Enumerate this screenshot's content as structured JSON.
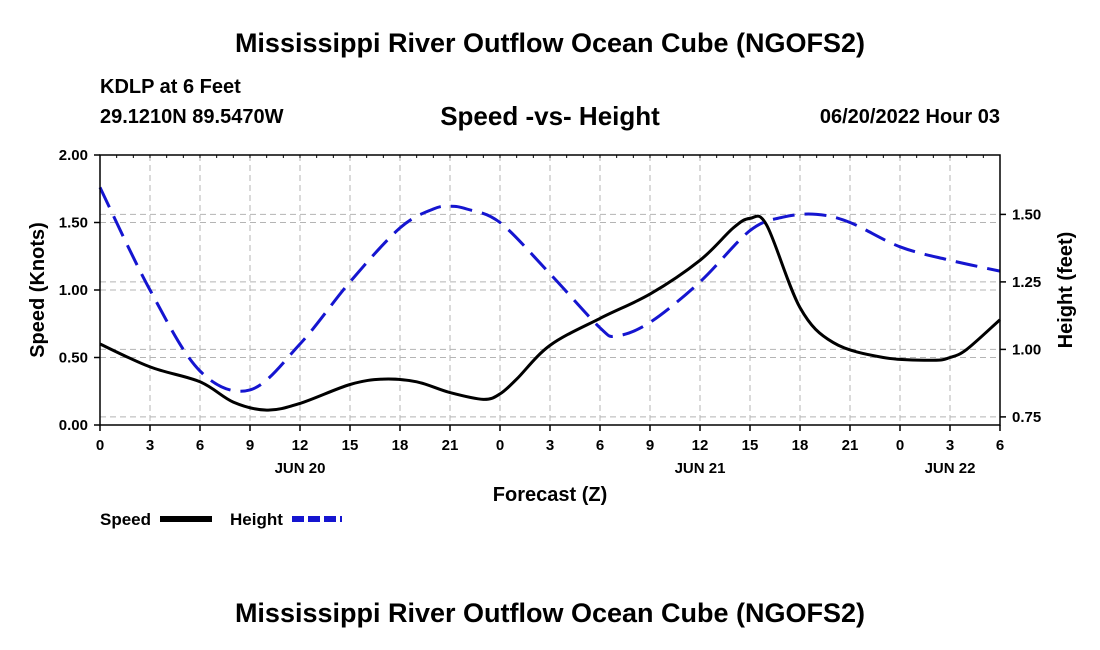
{
  "header": {
    "title": "Mississippi River Outflow Ocean Cube (NGOFS2)",
    "station": "KDLP at 6 Feet",
    "coords": "29.1210N  89.5470W",
    "subtitle": "Speed -vs- Height",
    "datetime": "06/20/2022 Hour 03",
    "footer_title": "Mississippi River Outflow Ocean Cube (NGOFS2)"
  },
  "colors": {
    "speed": "#000000",
    "height": "#1515d0",
    "grid": "#b4b4b4"
  },
  "chart_data": {
    "type": "line",
    "title": "Speed -vs- Height",
    "xlabel": "Forecast (Z)",
    "ylabel": "Speed (Knots)",
    "y2label": "Height (feet)",
    "xlim": [
      0,
      54
    ],
    "ylim": [
      0,
      2
    ],
    "y2lim": [
      0.72,
      1.72
    ],
    "grid": true,
    "x_ticks": [
      0,
      3,
      6,
      9,
      12,
      15,
      18,
      21,
      24,
      27,
      30,
      33,
      36,
      39,
      42,
      45,
      48,
      51,
      54
    ],
    "x_tick_labels": [
      "0",
      "3",
      "6",
      "9",
      "12",
      "15",
      "18",
      "21",
      "0",
      "3",
      "6",
      "9",
      "12",
      "15",
      "18",
      "21",
      "0",
      "3",
      "6"
    ],
    "date_labels": [
      {
        "x": 12,
        "label": "JUN 20"
      },
      {
        "x": 36,
        "label": "JUN 21"
      },
      {
        "x": 51,
        "label": "JUN 22"
      }
    ],
    "y_ticks": [
      0,
      0.5,
      1.0,
      1.5,
      2.0
    ],
    "y_tick_labels": [
      "0.00",
      "0.50",
      "1.00",
      "1.50",
      "2.00"
    ],
    "y2_ticks": [
      0.75,
      1.0,
      1.25,
      1.5
    ],
    "y2_tick_labels": [
      "0.75",
      "1.00",
      "1.25",
      "1.50"
    ],
    "legend": [
      {
        "name": "Speed",
        "style": "solid"
      },
      {
        "name": "Height",
        "style": "dashed"
      }
    ],
    "series": [
      {
        "name": "Speed",
        "axis": "left",
        "style": "solid",
        "x": [
          0,
          3,
          6,
          8,
          10,
          12,
          15,
          17,
          19,
          21,
          23,
          24,
          25,
          27,
          30,
          33,
          36,
          38,
          39,
          40,
          42,
          44,
          47,
          50,
          51,
          52,
          54
        ],
        "y": [
          0.6,
          0.43,
          0.32,
          0.17,
          0.11,
          0.16,
          0.3,
          0.34,
          0.32,
          0.24,
          0.19,
          0.23,
          0.34,
          0.59,
          0.79,
          0.97,
          1.22,
          1.46,
          1.53,
          1.48,
          0.87,
          0.61,
          0.5,
          0.48,
          0.5,
          0.56,
          0.78
        ]
      },
      {
        "name": "Height",
        "axis": "right",
        "style": "dashed",
        "x": [
          0,
          3,
          6,
          9,
          12,
          15,
          18,
          20,
          21,
          22,
          24,
          27,
          30,
          31,
          33,
          36,
          39,
          41,
          43,
          45,
          48,
          51,
          54
        ],
        "y": [
          1.6,
          1.22,
          0.92,
          0.85,
          1.02,
          1.25,
          1.45,
          1.52,
          1.53,
          1.52,
          1.47,
          1.28,
          1.08,
          1.05,
          1.1,
          1.25,
          1.44,
          1.49,
          1.5,
          1.47,
          1.38,
          1.33,
          1.29
        ]
      }
    ]
  }
}
